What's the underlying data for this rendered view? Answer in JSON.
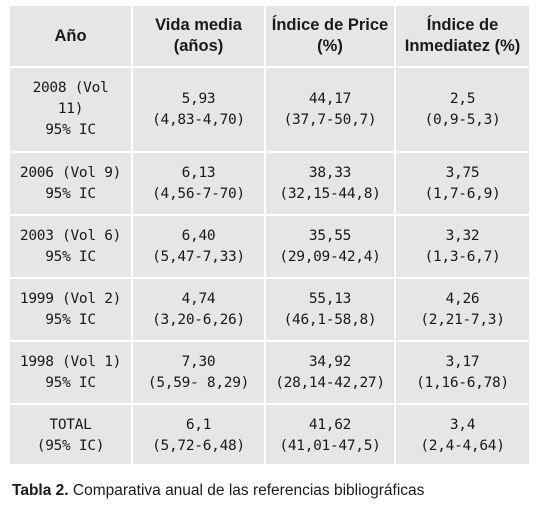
{
  "table": {
    "headers": [
      "Año",
      "Vida media (años)",
      "Índice de Price (%)",
      "Índice de Inmediatez (%)"
    ],
    "rows": [
      {
        "year": [
          "2008 (Vol",
          "11)",
          "95% IC"
        ],
        "vida": [
          "5,93",
          "(4,83-4,70)"
        ],
        "price": [
          "44,17",
          "(37,7-50,7)"
        ],
        "inmediatez": [
          "2,5",
          "(0,9-5,3)"
        ]
      },
      {
        "year": [
          "2006 (Vol 9)",
          "95% IC"
        ],
        "vida": [
          "6,13",
          "(4,56-7-70)"
        ],
        "price": [
          "38,33",
          "(32,15-44,8)"
        ],
        "inmediatez": [
          "3,75",
          "(1,7-6,9)"
        ]
      },
      {
        "year": [
          "2003 (Vol 6)",
          "95% IC"
        ],
        "vida": [
          "6,40",
          "(5,47-7,33)"
        ],
        "price": [
          "35,55",
          "(29,09-42,4)"
        ],
        "inmediatez": [
          "3,32",
          "(1,3-6,7)"
        ]
      },
      {
        "year": [
          "1999 (Vol 2)",
          "95% IC"
        ],
        "vida": [
          "4,74",
          "(3,20-6,26)"
        ],
        "price": [
          "55,13",
          "(46,1-58,8)"
        ],
        "inmediatez": [
          "4,26",
          "(2,21-7,3)"
        ]
      },
      {
        "year": [
          "1998 (Vol 1)",
          "95% IC"
        ],
        "vida": [
          "7,30",
          "(5,59- 8,29)"
        ],
        "price": [
          "34,92",
          "(28,14-42,27)"
        ],
        "inmediatez": [
          "3,17",
          "(1,16-6,78)"
        ]
      },
      {
        "year": [
          "TOTAL",
          "(95% IC)"
        ],
        "vida": [
          "6,1",
          "(5,72-6,48)"
        ],
        "price": [
          "41,62",
          "(41,01-47,5)"
        ],
        "inmediatez": [
          "3,4",
          "(2,4-4,64)"
        ]
      }
    ]
  },
  "caption": {
    "label": "Tabla 2.",
    "text": "Comparativa anual de las referencias bibliográficas"
  },
  "colors": {
    "cell_background": "#e6e6e6",
    "grid_lines": "#ffffff",
    "text": "#1a1a1a"
  }
}
